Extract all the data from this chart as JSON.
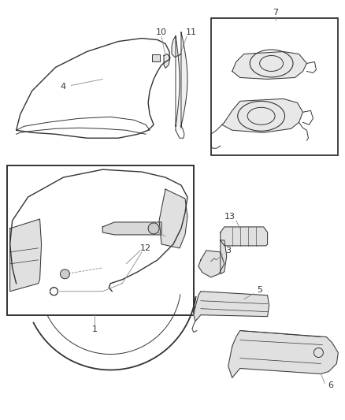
{
  "bg_color": "#ffffff",
  "line_color": "#333333",
  "label_color": "#333333",
  "fig_width": 4.39,
  "fig_height": 5.33,
  "dpi": 100
}
